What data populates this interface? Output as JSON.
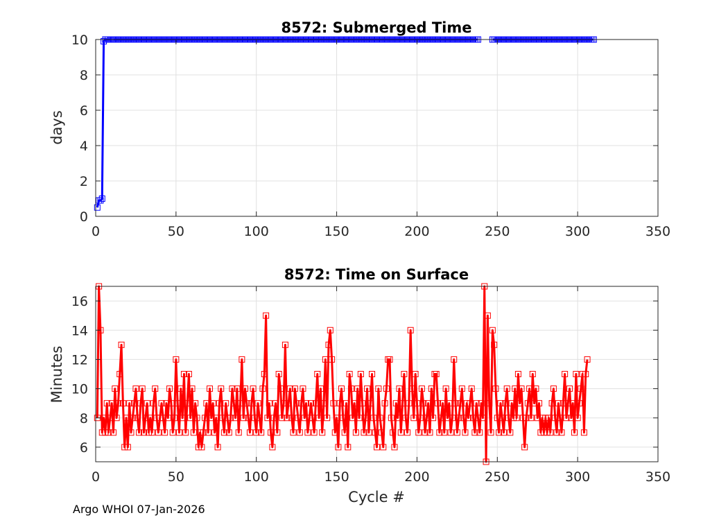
{
  "chart_data": [
    {
      "type": "line",
      "title": "8572: Submerged Time",
      "xlabel": "",
      "ylabel": "days",
      "xlim": [
        0,
        350
      ],
      "ylim": [
        0,
        10
      ],
      "xticks": [
        0,
        50,
        100,
        150,
        200,
        250,
        300,
        350
      ],
      "yticks": [
        0,
        2,
        4,
        6,
        8,
        10
      ],
      "grid": true,
      "color": "#0000ff",
      "marker": "square",
      "series": [
        {
          "name": "submerged_days",
          "segments": [
            {
              "x_start": 1,
              "values": [
                0.5,
                0.9,
                0.9,
                1.0,
                9.9,
                10.0,
                10.0,
                10.0,
                10.0,
                10.0
              ]
            },
            {
              "x_start": 11,
              "repeat_value": 10.0,
              "x_end": 238
            },
            {
              "x_start": 247,
              "repeat_value": 10.0,
              "x_end": 310
            }
          ]
        }
      ]
    },
    {
      "type": "line",
      "title": "8572: Time on Surface",
      "xlabel": "Cycle #",
      "ylabel": "Minutes",
      "xlim": [
        0,
        350
      ],
      "ylim": [
        5,
        17
      ],
      "xticks": [
        0,
        50,
        100,
        150,
        200,
        250,
        300,
        350
      ],
      "yticks": [
        6,
        8,
        10,
        12,
        14,
        16
      ],
      "grid": true,
      "color": "#ff0000",
      "marker": "square",
      "series": [
        {
          "name": "surface_minutes",
          "segments": [
            {
              "x_start": 1,
              "values": [
                8,
                17,
                14,
                7,
                8,
                7,
                9,
                7,
                8,
                9,
                7,
                10,
                8,
                9,
                11,
                13,
                9,
                6,
                8,
                6,
                9,
                7,
                8,
                9,
                10,
                8,
                7,
                9,
                10,
                7,
                8,
                9,
                7,
                8,
                7,
                9,
                10,
                8,
                7,
                8,
                9,
                8,
                7,
                9,
                8,
                10,
                9,
                7,
                8,
                12,
                9,
                7,
                10,
                8,
                11,
                7,
                9,
                11,
                8,
                10,
                7,
                9,
                8,
                6,
                7,
                6,
                7,
                8,
                9,
                7,
                10,
                8,
                9,
                7,
                8,
                6,
                9,
                10,
                8,
                7,
                9,
                8,
                7,
                8,
                10,
                9,
                8,
                10,
                7,
                9,
                12,
                8,
                10,
                9,
                8,
                7,
                9,
                10,
                8,
                7,
                9,
                8,
                7,
                10,
                11,
                15,
                8,
                9,
                7,
                6,
                8,
                9,
                7,
                11,
                10,
                8,
                9,
                13,
                8,
                9,
                10,
                8,
                7,
                10,
                9,
                8,
                7,
                9,
                10,
                8,
                9,
                7,
                8,
                9,
                8,
                7,
                9,
                11,
                8,
                10,
                7,
                9,
                12,
                8,
                13,
                14,
                12,
                9,
                7,
                8,
                6,
                9,
                10,
                8,
                7,
                9,
                6,
                11,
                10,
                8,
                9,
                7,
                10,
                8,
                11,
                9,
                7,
                8,
                10,
                7,
                9,
                11,
                8,
                7,
                6,
                10,
                8,
                7,
                6,
                9,
                10,
                12,
                12,
                8,
                7,
                6,
                9,
                8,
                10,
                7,
                9,
                11,
                8,
                7,
                9,
                14,
                10,
                8,
                11,
                9,
                7,
                8,
                10,
                9,
                7,
                8,
                9,
                7,
                10,
                8,
                11,
                11,
                9,
                7,
                8,
                9,
                7,
                10,
                8,
                9,
                7,
                8,
                12,
                9,
                7,
                8,
                9,
                10,
                8,
                7,
                9,
                8,
                9,
                10,
                8,
                7,
                9,
                8,
                7,
                9,
                8,
                17,
                5,
                15,
                9,
                7,
                14,
                13,
                10,
                8,
                7,
                9,
                8,
                7,
                9,
                10,
                8,
                7,
                9,
                8,
                10,
                8,
                11,
                9,
                10,
                8,
                6,
                8,
                9,
                10,
                8,
                11,
                9,
                10,
                8,
                9,
                7,
                8,
                7,
                8,
                7,
                8,
                7,
                9,
                10,
                8,
                7,
                9,
                8,
                7,
                9,
                11,
                8,
                9,
                10,
                8,
                9,
                7,
                11,
                8,
                9,
                10,
                11,
                7,
                11,
                12
              ]
            }
          ]
        }
      ]
    }
  ],
  "footer": {
    "text": "Argo WHOI 07-Jan-2026"
  }
}
